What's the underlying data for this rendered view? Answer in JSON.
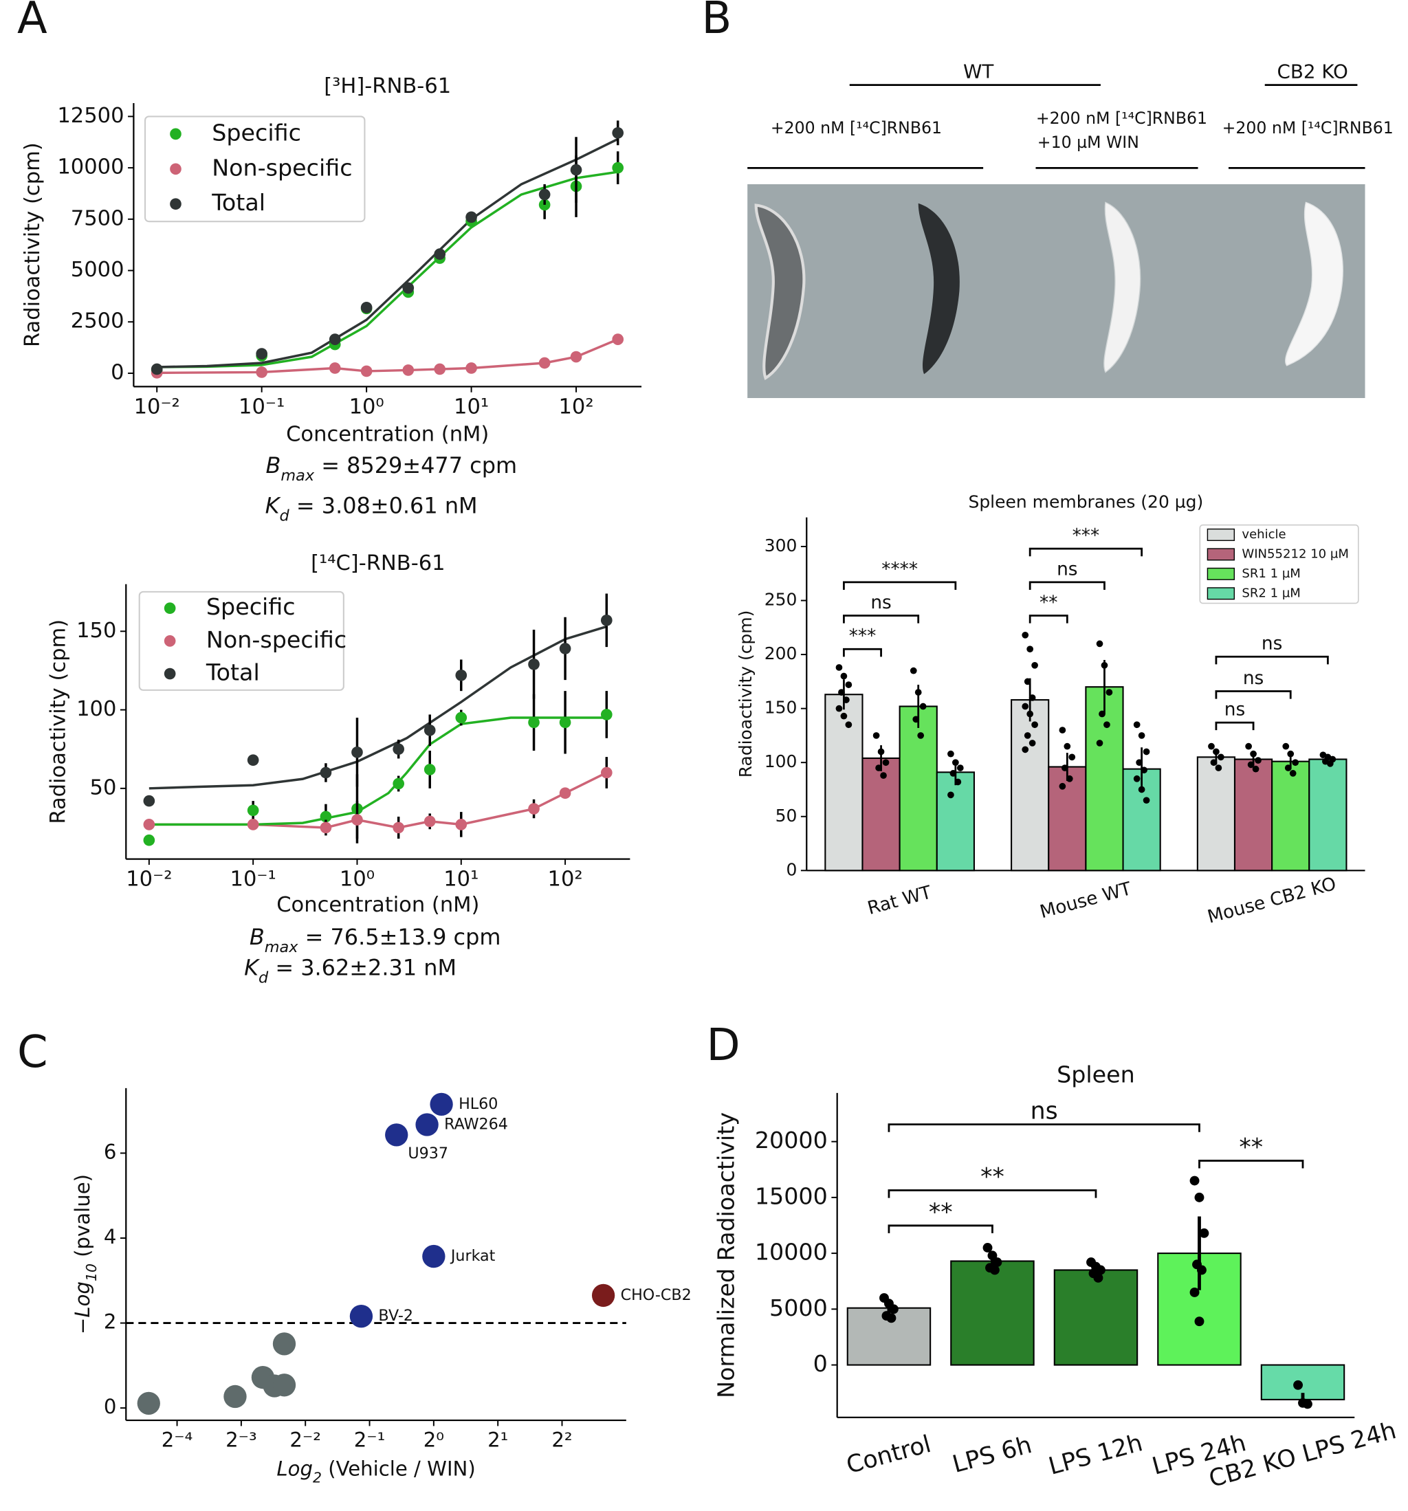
{
  "panel_labels": [
    "A",
    "B",
    "C",
    "D"
  ],
  "image_panel": {
    "groups": [
      "WT",
      "CB2 KO"
    ],
    "conditions": [
      [
        "+200 nM [¹⁴C]RNB61"
      ],
      [
        "+200 nM [¹⁴C]RNB61",
        "+10 µM WIN"
      ],
      [
        "+200 nM [¹⁴C]RNB61"
      ]
    ]
  },
  "chart_data": [
    {
      "type": "scatter",
      "title": "[³H]-RNB-61",
      "xlabel": "Concentration (nM)",
      "ylabel": "Radioactivity (cpm)",
      "xscale": "log",
      "xlim": [
        0.006,
        420
      ],
      "ylim": [
        -650,
        13150
      ],
      "xticks": [
        {
          "value": 0.01,
          "label": "10⁻²"
        },
        {
          "value": 0.1,
          "label": "10⁻¹"
        },
        {
          "value": 1,
          "label": "10⁰"
        },
        {
          "value": 10,
          "label": "10¹"
        },
        {
          "value": 100,
          "label": "10²"
        }
      ],
      "yticks": [
        0,
        2500,
        5000,
        7500,
        10000,
        12500
      ],
      "x": [
        0.01,
        0.1,
        0.5,
        1,
        2.5,
        5,
        10,
        50,
        100,
        250
      ],
      "series": [
        {
          "name": "Specific",
          "color": "#22b122",
          "values": [
            150,
            850,
            1400,
            3150,
            3950,
            5600,
            7400,
            8200,
            9100,
            10000
          ],
          "errors": [
            null,
            null,
            null,
            null,
            null,
            null,
            null,
            700,
            1500,
            800
          ]
        },
        {
          "name": "Non-specific",
          "color": "#cd6376",
          "line": true,
          "values": [
            20,
            50,
            250,
            100,
            150,
            200,
            250,
            500,
            800,
            1650
          ]
        },
        {
          "name": "Total",
          "color": "#2f3535",
          "values": [
            200,
            950,
            1650,
            3200,
            4150,
            5800,
            7600,
            8700,
            9900,
            11700
          ],
          "errors": [
            null,
            null,
            null,
            null,
            null,
            null,
            null,
            500,
            1600,
            600
          ]
        }
      ],
      "fits": [
        {
          "color": "#22b122",
          "x": [
            0.01,
            0.03,
            0.1,
            0.3,
            1,
            3,
            10,
            30,
            100,
            250
          ],
          "values": [
            300,
            320,
            400,
            800,
            2300,
            4600,
            7100,
            8700,
            9500,
            9800
          ]
        },
        {
          "color": "#2f3535",
          "x": [
            0.01,
            0.03,
            0.1,
            0.3,
            1,
            3,
            10,
            30,
            100,
            250
          ],
          "values": [
            300,
            350,
            500,
            1000,
            2600,
            4900,
            7500,
            9200,
            10400,
            11400
          ]
        }
      ],
      "legend": "upper left",
      "annotations": [
        [
          "B",
          "max",
          " = 8529±477 cpm"
        ],
        [
          "K",
          "d",
          " = 3.08±0.61 nM"
        ]
      ]
    },
    {
      "type": "scatter",
      "title": "[¹⁴C]-RNB-61",
      "xlabel": "Concentration (nM)",
      "ylabel": "Radioactivity (cpm)",
      "xscale": "log",
      "xlim": [
        0.006,
        420
      ],
      "ylim": [
        5,
        180
      ],
      "xticks": [
        {
          "value": 0.01,
          "label": "10⁻²"
        },
        {
          "value": 0.1,
          "label": "10⁻¹"
        },
        {
          "value": 1,
          "label": "10⁰"
        },
        {
          "value": 10,
          "label": "10¹"
        },
        {
          "value": 100,
          "label": "10²"
        }
      ],
      "yticks": [
        50,
        100,
        150
      ],
      "x": [
        0.01,
        0.1,
        0.5,
        1,
        2.5,
        5,
        10,
        50,
        100,
        250
      ],
      "series": [
        {
          "name": "Specific",
          "color": "#22b122",
          "values": [
            17,
            36,
            32,
            37,
            53,
            62,
            95,
            92,
            92,
            97
          ],
          "errors": [
            null,
            6,
            8,
            22,
            5,
            12,
            5,
            18,
            20,
            15
          ]
        },
        {
          "name": "Non-specific",
          "color": "#cd6376",
          "line": true,
          "values": [
            27,
            27,
            25,
            30,
            25,
            29,
            27,
            37,
            47,
            60
          ],
          "errors": [
            null,
            null,
            5,
            12,
            7,
            5,
            8,
            6,
            3,
            10
          ]
        },
        {
          "name": "Total",
          "color": "#2f3535",
          "values": [
            42,
            68,
            60,
            73,
            75,
            87,
            122,
            129,
            139,
            157
          ],
          "errors": [
            null,
            3,
            6,
            22,
            6,
            10,
            10,
            22,
            20,
            17
          ]
        }
      ],
      "fits": [
        {
          "color": "#22b122",
          "x": [
            0.01,
            0.1,
            0.3,
            1,
            2,
            3,
            5,
            10,
            30,
            250
          ],
          "values": [
            27,
            27,
            28,
            35,
            47,
            60,
            78,
            91,
            95,
            95
          ]
        },
        {
          "color": "#2f3535",
          "x": [
            0.01,
            0.03,
            0.1,
            0.3,
            1,
            3,
            10,
            30,
            100,
            250
          ],
          "values": [
            50,
            51,
            52,
            56,
            67,
            82,
            105,
            127,
            145,
            153
          ]
        }
      ],
      "legend": "upper left",
      "annotations": [
        [
          "B",
          "max",
          " = 76.5±13.9 cpm"
        ],
        [
          "K",
          "d",
          " = 3.62±2.31 nM"
        ]
      ]
    },
    {
      "type": "bar",
      "title": "Spleen membranes (20 µg)",
      "ylabel": "Radioactivity (cpm)",
      "categories": [
        "Rat WT",
        "Mouse WT",
        "Mouse CB2 KO"
      ],
      "ylim": [
        0,
        327
      ],
      "yticks": [
        0,
        50,
        100,
        150,
        200,
        250,
        300
      ],
      "series": [
        {
          "name": "vehicle",
          "color": "#dadddc",
          "values": [
            163,
            158,
            105
          ],
          "errors": [
            14,
            20,
            7
          ],
          "points": [
            [
              188,
              180,
              172,
              165,
              158,
              150,
              143,
              135
            ],
            [
              218,
              205,
              190,
              175,
              160,
              152,
              145,
              135,
              125,
              118,
              112
            ],
            [
              115,
              110,
              105,
              100,
              95
            ]
          ]
        },
        {
          "name": "WIN55212 10 µM",
          "color": "#b5647a",
          "values": [
            104,
            96,
            103
          ],
          "errors": [
            12,
            13,
            6
          ],
          "points": [
            [
              125,
              110,
              100,
              95,
              88
            ],
            [
              130,
              115,
              105,
              95,
              85,
              78
            ],
            [
              115,
              108,
              102,
              98,
              94
            ]
          ]
        },
        {
          "name": "SR1 1 µM",
          "color": "#66e25c",
          "values": [
            152,
            170,
            101
          ],
          "errors": [
            20,
            25,
            7
          ],
          "points": [
            [
              185,
              165,
              152,
              140,
              125
            ],
            [
              210,
              190,
              165,
              145,
              135,
              118
            ],
            [
              115,
              108,
              100,
              95,
              90
            ]
          ]
        },
        {
          "name": "SR2 1 µM",
          "color": "#66d9a6",
          "values": [
            91,
            94,
            103
          ],
          "errors": [
            12,
            20,
            3
          ],
          "points": [
            [
              108,
              100,
              95,
              90,
              82,
              70
            ],
            [
              135,
              125,
              110,
              100,
              93,
              85,
              75,
              65
            ],
            [
              107,
              105,
              103,
              101,
              99
            ]
          ]
        }
      ],
      "significance": [
        [
          {
            "label": "***",
            "y": 205
          },
          {
            "label": "ns",
            "y": 236
          },
          {
            "label": "****",
            "y": 267
          }
        ],
        [
          {
            "label": "**",
            "y": 236
          },
          {
            "label": "ns",
            "y": 267
          },
          {
            "label": "***",
            "y": 298
          }
        ],
        [
          {
            "label": "ns",
            "y": 137
          },
          {
            "label": "ns",
            "y": 166
          },
          {
            "label": "ns",
            "y": 198
          }
        ]
      ],
      "legend": "upper right"
    },
    {
      "type": "scatter",
      "xlabel": [
        "Log",
        "2",
        " (Vehicle / WIN)"
      ],
      "ylabel": [
        "−Log",
        "10",
        " (pvalue)"
      ],
      "xscale": "log",
      "xlim": [
        0.036,
        8
      ],
      "ylim": [
        -0.29,
        7.53
      ],
      "xticks": [
        {
          "value": 0.0625,
          "label": "2⁻⁴"
        },
        {
          "value": 0.125,
          "label": "2⁻³"
        },
        {
          "value": 0.25,
          "label": "2⁻²"
        },
        {
          "value": 0.5,
          "label": "2⁻¹"
        },
        {
          "value": 1,
          "label": "2⁰"
        },
        {
          "value": 2,
          "label": "2¹"
        },
        {
          "value": 4,
          "label": "2²"
        }
      ],
      "yticks": [
        0,
        2,
        4,
        6
      ],
      "x": [
        0.046,
        0.117,
        0.158,
        0.179,
        0.199,
        0.199,
        0.457,
        1.0,
        0.669,
        0.93,
        1.087,
        6.25
      ],
      "values": [
        0.11,
        0.27,
        0.72,
        0.52,
        0.54,
        1.51,
        2.16,
        3.57,
        6.43,
        6.67,
        7.15,
        2.65
      ],
      "point_labels": [
        null,
        null,
        null,
        null,
        null,
        null,
        "BV-2",
        "Jurkat",
        "U937",
        "RAW264",
        "HL60",
        "CHO-CB2"
      ],
      "point_colors": [
        "#5f6b6b",
        "#5f6b6b",
        "#5f6b6b",
        "#5f6b6b",
        "#5f6b6b",
        "#5f6b6b",
        "#1f2f8c",
        "#1f2f8c",
        "#1f2f8c",
        "#1f2f8c",
        "#1f2f8c",
        "#7a1c1c"
      ],
      "threshold": 2
    },
    {
      "type": "bar",
      "title": "Spleen",
      "ylabel": "Normalized Radioactivity",
      "categories": [
        "Control",
        "LPS 6h",
        "LPS 12h",
        "LPS 24h",
        "CB2 KO LPS 24h"
      ],
      "values": [
        5100,
        9300,
        8500,
        10000,
        -3100
      ],
      "colors": [
        "#b3b8b6",
        "#2a7f2a",
        "#2a7f2a",
        "#5ef25a",
        "#66dba8"
      ],
      "errors": [
        700,
        800,
        500,
        3300,
        600
      ],
      "points": [
        [
          6000,
          5500,
          5000,
          4400,
          4200
        ],
        [
          10500,
          9800,
          9200,
          8700,
          8500
        ],
        [
          9200,
          8800,
          8500,
          8200,
          7800
        ],
        [
          16500,
          15000,
          11800,
          9000,
          8500,
          6500,
          3900
        ],
        [
          -1800,
          -3400,
          -3500
        ]
      ],
      "ylim": [
        -4700,
        24360
      ],
      "yticks": [
        0,
        5000,
        10000,
        15000,
        20000
      ],
      "brackets": [
        {
          "between": [
            "Control",
            "LPS 6h"
          ],
          "y": 12480,
          "label": "**"
        },
        {
          "between": [
            "Control",
            "LPS 12h"
          ],
          "y": 15640,
          "label": "**"
        },
        {
          "between": [
            "Control",
            "LPS 24h"
          ],
          "y": 21540,
          "label": "ns"
        },
        {
          "between": [
            "LPS 24h",
            "CB2 KO LPS 24h"
          ],
          "y": 18290,
          "label": "**"
        }
      ]
    }
  ]
}
